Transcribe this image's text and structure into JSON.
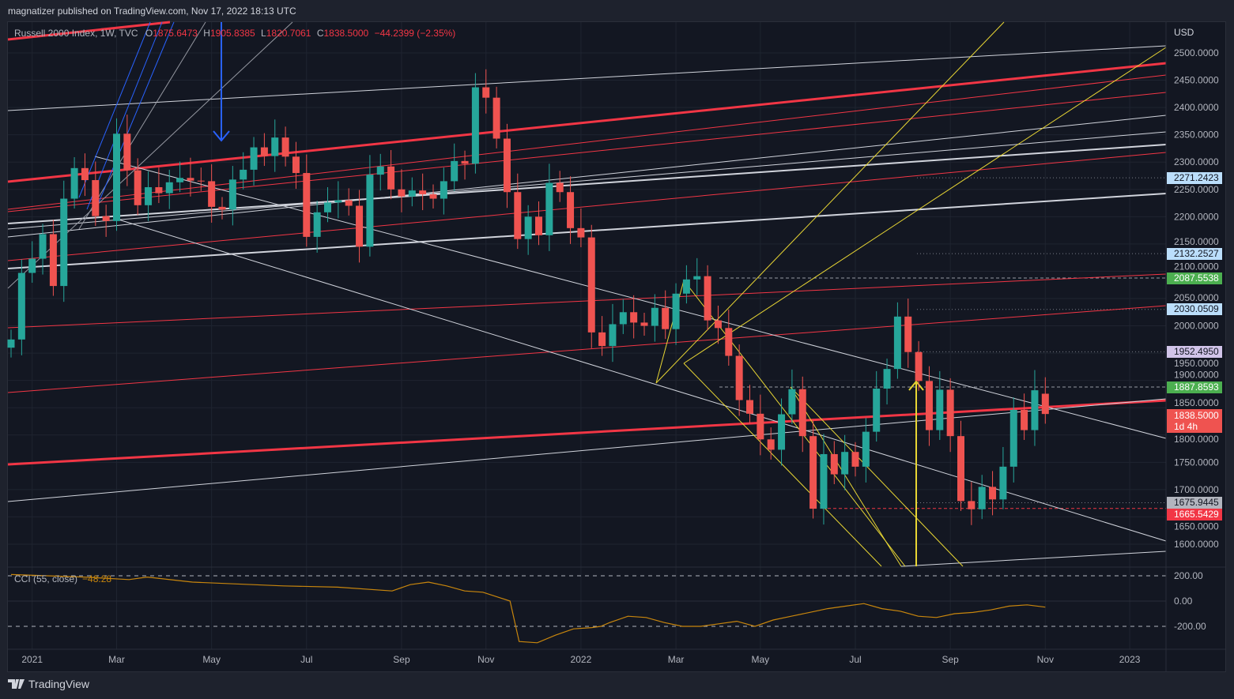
{
  "publisher_line": "magnatizer published on TradingView.com, Nov 17, 2022 18:13 UTC",
  "legend": {
    "symbol": "Russell 2000 Index, 1W, TVC",
    "o_label": "O",
    "o": "1875.6473",
    "h_label": "H",
    "h": "1905.8385",
    "l_label": "L",
    "l": "1820.7061",
    "c_label": "C",
    "c": "1838.5000",
    "change": "−44.2399 (−2.35%)"
  },
  "currency": "USD",
  "footer": {
    "brand": "TradingView"
  },
  "colors": {
    "up": "#26a69a",
    "down": "#ef5350",
    "bg": "#131722",
    "red_line": "#f23645",
    "white_line": "#d1d4dc",
    "yellow_line": "#e8d634",
    "blue_line": "#2962ff",
    "cci": "#c8860d"
  },
  "price_labels": [
    {
      "value": "2271.2423",
      "bg": "#bbdefb",
      "fg": "#131722",
      "style": "dotted"
    },
    {
      "value": "2132.2527",
      "bg": "#bbdefb",
      "fg": "#131722",
      "style": "dotted"
    },
    {
      "value": "2087.5538",
      "bg": "#4caf50",
      "fg": "#ffffff",
      "style": "dashed"
    },
    {
      "value": "2030.0509",
      "bg": "#bbdefb",
      "fg": "#131722",
      "style": "dotted"
    },
    {
      "value": "1952.4950",
      "bg": "#d1c4e9",
      "fg": "#131722",
      "style": "dotted"
    },
    {
      "value": "1887.8593",
      "bg": "#4caf50",
      "fg": "#ffffff",
      "style": "dashed"
    },
    {
      "value": "1675.9445",
      "bg": "#b2b5be",
      "fg": "#131722",
      "style": "dotted"
    },
    {
      "value": "1665.5429",
      "bg": "#f23645",
      "fg": "#ffffff",
      "style": "dashed"
    }
  ],
  "last_price": {
    "value": "1838.5000",
    "countdown": "1d 4h"
  },
  "chart_data": {
    "type": "candlestick",
    "title": "Russell 2000 Index, 1W, TVC",
    "ylim": [
      1570,
      2530
    ],
    "yticks": [
      "2500.0000",
      "2450.0000",
      "2400.0000",
      "2350.0000",
      "2300.0000",
      "2250.0000",
      "2200.0000",
      "2150.0000",
      "2100.0000",
      "2050.0000",
      "2000.0000",
      "1950.0000",
      "1900.0000",
      "1850.0000",
      "1800.0000",
      "1750.0000",
      "1700.0000",
      "1650.0000",
      "1600.0000"
    ],
    "xticks": [
      {
        "label": "2021",
        "week": 2
      },
      {
        "label": "Mar",
        "week": 10
      },
      {
        "label": "May",
        "week": 19
      },
      {
        "label": "Jul",
        "week": 28
      },
      {
        "label": "Sep",
        "week": 37
      },
      {
        "label": "Nov",
        "week": 45
      },
      {
        "label": "2022",
        "week": 54
      },
      {
        "label": "Mar",
        "week": 63
      },
      {
        "label": "May",
        "week": 71
      },
      {
        "label": "Jul",
        "week": 80
      },
      {
        "label": "Sep",
        "week": 89
      },
      {
        "label": "Nov",
        "week": 98
      },
      {
        "label": "2023",
        "week": 106
      }
    ],
    "first_open": 1960,
    "close": [
      1975,
      2097,
      2123,
      2168,
      2073,
      2233,
      2289,
      2267,
      2201,
      2192,
      2352,
      2285,
      2221,
      2254,
      2243,
      2263,
      2271,
      2266,
      2265,
      2218,
      2213,
      2268,
      2286,
      2327,
      2311,
      2345,
      2310,
      2280,
      2163,
      2208,
      2226,
      2230,
      2220,
      2145,
      2277,
      2292,
      2250,
      2237,
      2248,
      2241,
      2233,
      2265,
      2302,
      2297,
      2437,
      2418,
      2343,
      2245,
      2159,
      2200,
      2166,
      2262,
      2245,
      2179,
      2162,
      1988,
      1963,
      2003,
      2025,
      2006,
      2000,
      2033,
      1994,
      2059,
      2085,
      2091,
      2010,
      1996,
      1945,
      1864,
      1839,
      1792,
      1773,
      1838,
      1884,
      1798,
      1665,
      1765,
      1728,
      1769,
      1742,
      1806,
      1885,
      1921,
      2017,
      1952,
      1899,
      1809,
      1883,
      1798,
      1679,
      1664,
      1705,
      1682,
      1742,
      1846,
      1809,
      1882,
      1838.5
    ],
    "last_candle": {
      "open": 1875.6473,
      "high": 1905.8385,
      "low": 1820.7061,
      "close": 1838.5
    },
    "cci": {
      "name": "CCI (55, close)",
      "value": "−48.28",
      "levels": [
        "200.00",
        "0.00",
        "-200.00"
      ],
      "ylim": [
        -400,
        250
      ],
      "points": [
        [
          0,
          210
        ],
        [
          8,
          190
        ],
        [
          13,
          170
        ],
        [
          15,
          190
        ],
        [
          20,
          150
        ],
        [
          30,
          120
        ],
        [
          36,
          110
        ],
        [
          42,
          80
        ],
        [
          44,
          130
        ],
        [
          46,
          150
        ],
        [
          48,
          120
        ],
        [
          50,
          80
        ],
        [
          52,
          70
        ],
        [
          55,
          0
        ],
        [
          56,
          -320
        ],
        [
          58,
          -330
        ],
        [
          60,
          -270
        ],
        [
          62,
          -220
        ],
        [
          64,
          -210
        ],
        [
          65,
          -200
        ],
        [
          66,
          -170
        ],
        [
          68,
          -120
        ],
        [
          70,
          -130
        ],
        [
          72,
          -170
        ],
        [
          74,
          -200
        ],
        [
          76,
          -200
        ],
        [
          78,
          -180
        ],
        [
          80,
          -160
        ],
        [
          82,
          -200
        ],
        [
          84,
          -150
        ],
        [
          86,
          -120
        ],
        [
          88,
          -90
        ],
        [
          90,
          -60
        ],
        [
          92,
          -40
        ],
        [
          94,
          -20
        ],
        [
          96,
          -60
        ],
        [
          98,
          -80
        ],
        [
          100,
          -120
        ],
        [
          102,
          -130
        ],
        [
          104,
          -100
        ],
        [
          106,
          -90
        ],
        [
          108,
          -70
        ],
        [
          110,
          -40
        ],
        [
          112,
          -30
        ],
        [
          114,
          -48
        ]
      ]
    },
    "cci_xscale_note": "cci points use half-week index"
  }
}
